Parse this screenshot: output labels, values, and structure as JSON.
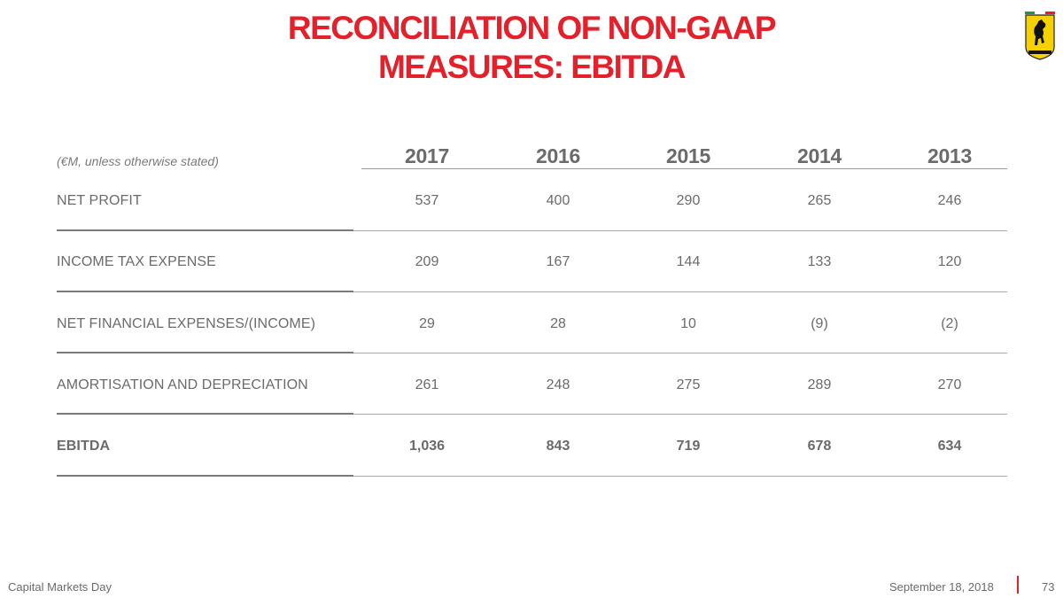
{
  "title": {
    "line1": "RECONCILIATION OF NON-GAAP",
    "line2": "MEASURES: EBITDA"
  },
  "brand_color": "#e4202b",
  "logo": {
    "icon": "ferrari-prancing-horse-shield-icon",
    "background": "#f5d100"
  },
  "table": {
    "units_label": "(€M, unless otherwise stated)",
    "years": [
      "2017",
      "2016",
      "2015",
      "2014",
      "2013"
    ],
    "rows": [
      {
        "label": "NET PROFIT",
        "values": [
          "537",
          "400",
          "290",
          "265",
          "246"
        ],
        "bold": false
      },
      {
        "label": "INCOME TAX EXPENSE",
        "values": [
          "209",
          "167",
          "144",
          "133",
          "120"
        ],
        "bold": false
      },
      {
        "label": "NET FINANCIAL EXPENSES/(INCOME)",
        "values": [
          "29",
          "28",
          "10",
          "(9)",
          "(2)"
        ],
        "bold": false
      },
      {
        "label": "AMORTISATION AND DEPRECIATION",
        "values": [
          "261",
          "248",
          "275",
          "289",
          "270"
        ],
        "bold": false
      },
      {
        "label": "EBITDA",
        "values": [
          "1,036",
          "843",
          "719",
          "678",
          "634"
        ],
        "bold": true
      }
    ]
  },
  "footer": {
    "event": "Capital Markets Day",
    "date": "September 18, 2018",
    "page": "73"
  }
}
